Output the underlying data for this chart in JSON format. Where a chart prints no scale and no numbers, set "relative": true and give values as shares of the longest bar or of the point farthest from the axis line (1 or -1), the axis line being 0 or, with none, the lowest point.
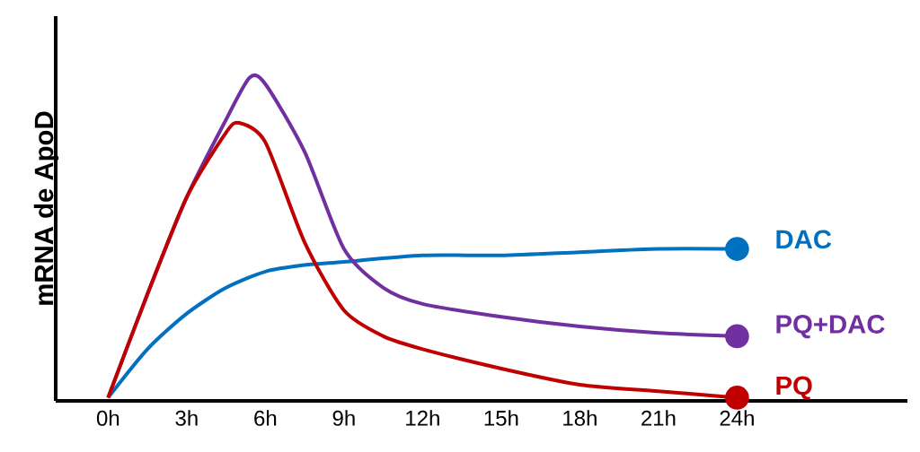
{
  "chart_data": {
    "type": "line",
    "relative": true,
    "ylabel": "mRNA de ApoD",
    "xlim": [
      -2,
      30.5
    ],
    "xticks": [
      {
        "value": 0,
        "label": "0h"
      },
      {
        "value": 3,
        "label": "3h"
      },
      {
        "value": 6,
        "label": "6h"
      },
      {
        "value": 9,
        "label": "9h"
      },
      {
        "value": 12,
        "label": "12h"
      },
      {
        "value": 15,
        "label": "15h"
      },
      {
        "value": 18,
        "label": "18h"
      },
      {
        "value": 21,
        "label": "21h"
      },
      {
        "value": 24,
        "label": "24h"
      }
    ],
    "legend": "right",
    "grid": false,
    "series": [
      {
        "name": "DAC",
        "color": "#0070c0",
        "x": [
          0,
          1.5,
          3,
          4.5,
          6,
          7.5,
          9,
          12,
          15,
          18,
          21,
          24
        ],
        "values": [
          0.01,
          0.16,
          0.27,
          0.35,
          0.4,
          0.42,
          0.43,
          0.45,
          0.45,
          0.46,
          0.47,
          0.47
        ]
      },
      {
        "name": "PQ+DAC",
        "color": "#7030a0",
        "x": [
          0,
          1.5,
          3,
          4.5,
          5.4,
          6,
          7.5,
          9,
          10.5,
          12,
          15,
          18,
          21,
          24
        ],
        "values": [
          0.01,
          0.33,
          0.63,
          0.87,
          1.0,
          0.98,
          0.77,
          0.47,
          0.35,
          0.3,
          0.26,
          0.23,
          0.21,
          0.2
        ]
      },
      {
        "name": "PQ",
        "color": "#c00000",
        "x": [
          0,
          1.5,
          3,
          4.5,
          5,
          6,
          7.5,
          9,
          10.5,
          12,
          15,
          18,
          21,
          24
        ],
        "values": [
          0.01,
          0.33,
          0.63,
          0.83,
          0.86,
          0.8,
          0.49,
          0.28,
          0.2,
          0.16,
          0.1,
          0.05,
          0.03,
          0.01
        ]
      }
    ]
  }
}
